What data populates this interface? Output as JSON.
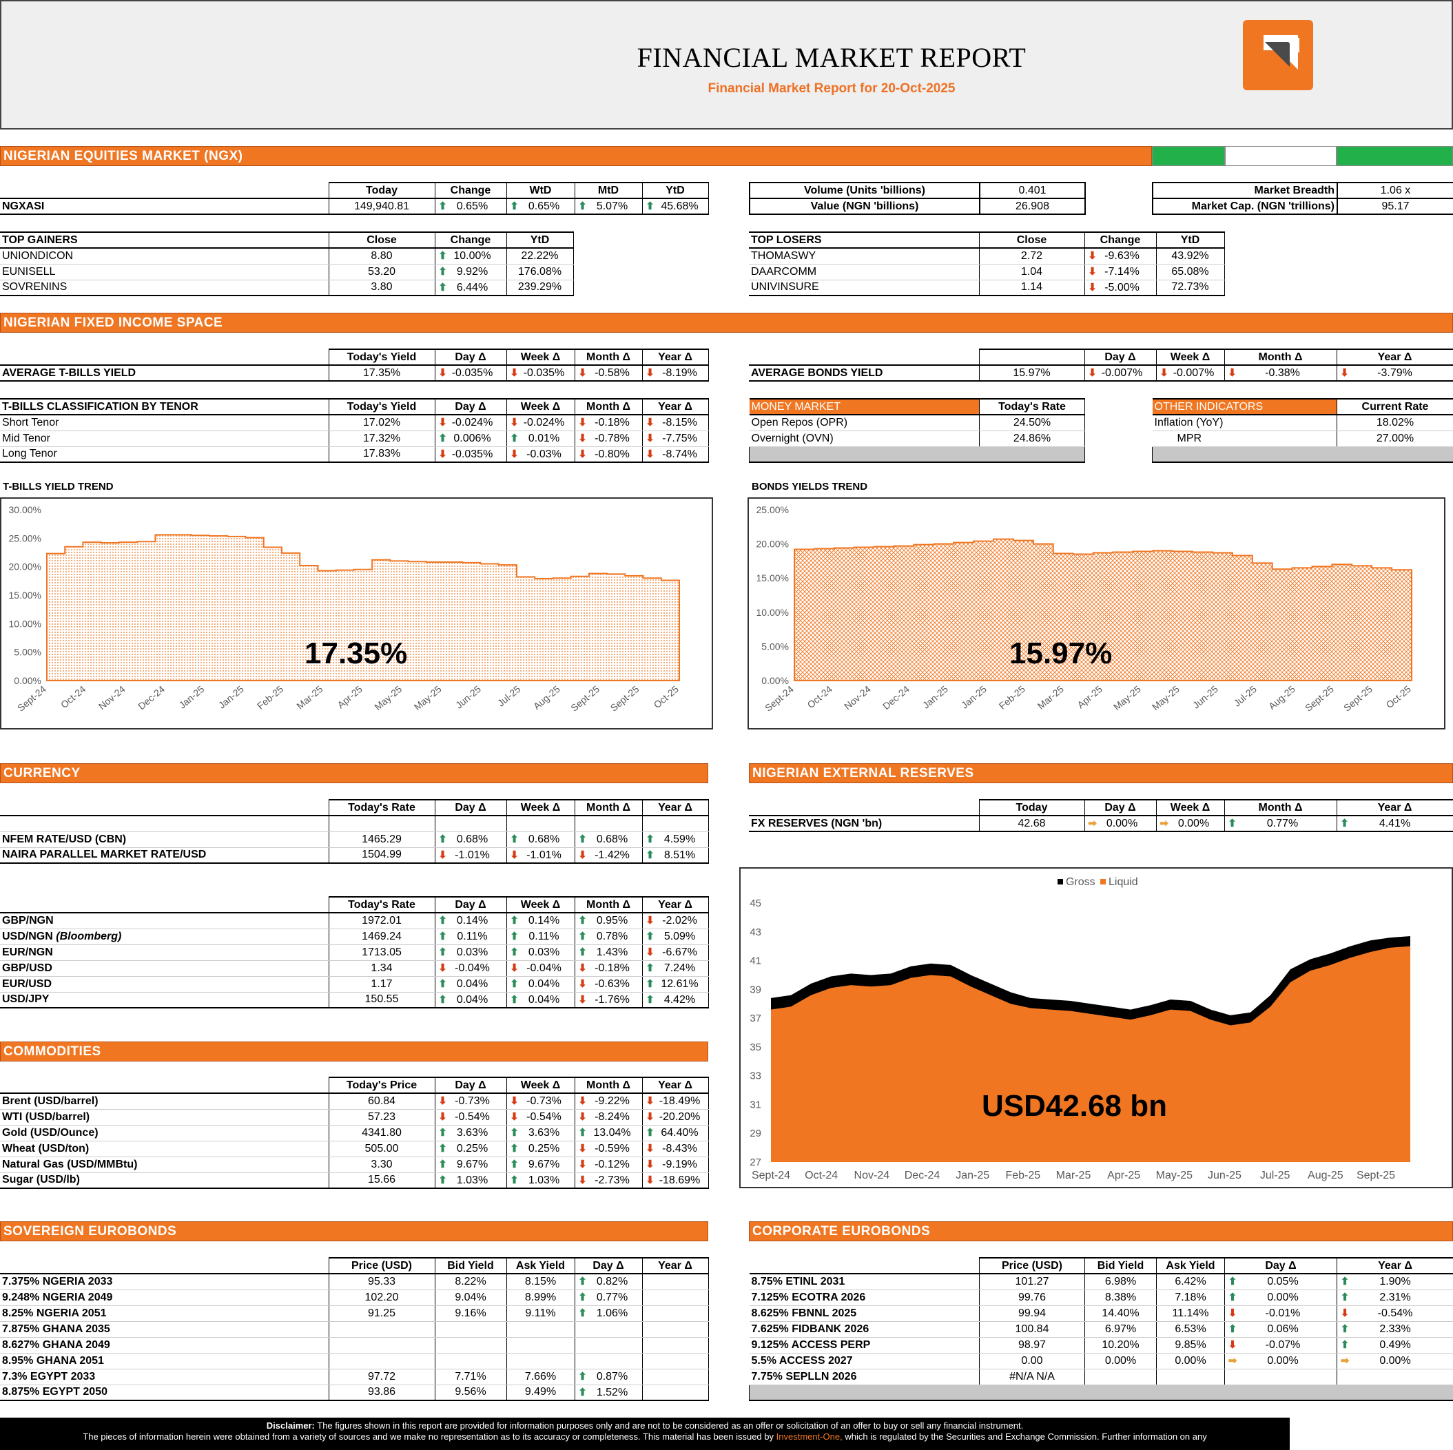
{
  "header": {
    "title": "FINANCIAL MARKET REPORT",
    "subtitle": "Financial Market Report for 20-Oct-2025"
  },
  "equities": {
    "band": "NIGERIAN EQUITIES MARKET (NGX)",
    "ngx": {
      "cols": [
        "Today",
        "Change",
        "WtD",
        "MtD",
        "YtD"
      ],
      "label": "NGXASI",
      "today": "149,940.81",
      "change": "0.65%",
      "wtd": "0.65%",
      "mtd": "5.07%",
      "ytd": "45.68%"
    },
    "volume": {
      "label": "Volume (Units 'billions)",
      "value": "0.401"
    },
    "value": {
      "label": "Value (NGN 'billions)",
      "value": "26.908"
    },
    "breadth": {
      "label": "Market Breadth",
      "value": "1.06 x"
    },
    "mcap": {
      "label": "Market Cap. (NGN 'trillions)",
      "value": "95.17"
    },
    "gainers": {
      "title": "TOP GAINERS",
      "cols": [
        "Close",
        "Change",
        "YtD"
      ],
      "rows": [
        {
          "name": "UNIONDICON",
          "close": "8.80",
          "change": "10.00%",
          "ytd": "22.22%"
        },
        {
          "name": "EUNISELL",
          "close": "53.20",
          "change": "9.92%",
          "ytd": "176.08%"
        },
        {
          "name": "SOVRENINS",
          "close": "3.80",
          "change": "6.44%",
          "ytd": "239.29%"
        }
      ]
    },
    "losers": {
      "title": "TOP LOSERS",
      "cols": [
        "Close",
        "Change",
        "YtD"
      ],
      "rows": [
        {
          "name": "THOMASWY",
          "close": "2.72",
          "change": "-9.63%",
          "ytd": "43.92%"
        },
        {
          "name": "DAARCOMM",
          "close": "1.04",
          "change": "-7.14%",
          "ytd": "65.08%"
        },
        {
          "name": "UNIVINSURE",
          "close": "1.14",
          "change": "-5.00%",
          "ytd": "72.73%"
        }
      ]
    }
  },
  "fixed": {
    "band": "NIGERIAN FIXED INCOME SPACE",
    "tbills": {
      "cols": [
        "Today's Yield",
        "Day Δ",
        "Week Δ",
        "Month Δ",
        "Year Δ"
      ],
      "label": "AVERAGE T-BILLS YIELD",
      "today": "17.35%",
      "day": "-0.035%",
      "week": "-0.035%",
      "month": "-0.58%",
      "year": "-8.19%"
    },
    "bonds": {
      "cols": [
        "",
        "Day Δ",
        "Week Δ",
        "Month Δ",
        "Year Δ"
      ],
      "label": "AVERAGE BONDS YIELD",
      "today": "15.97%",
      "day": "-0.007%",
      "week": "-0.007%",
      "month": "-0.38%",
      "year": "-3.79%"
    },
    "tenor": {
      "title": "T-BILLS CLASSIFICATION BY TENOR",
      "cols": [
        "Today's Yield",
        "Day Δ",
        "Week Δ",
        "Month Δ",
        "Year Δ"
      ],
      "rows": [
        {
          "name": "Short Tenor",
          "today": "17.02%",
          "day": "-0.024%",
          "dd": "dn",
          "week": "-0.024%",
          "wd": "dn",
          "month": "-0.18%",
          "md": "dn",
          "year": "-8.15%",
          "yd": "dn"
        },
        {
          "name": "Mid Tenor",
          "today": "17.32%",
          "day": "0.006%",
          "dd": "up",
          "week": "0.01%",
          "wd": "up",
          "month": "-0.78%",
          "md": "dn",
          "year": "-7.75%",
          "yd": "dn"
        },
        {
          "name": "Long Tenor",
          "today": "17.83%",
          "day": "-0.035%",
          "dd": "dn",
          "week": "-0.03%",
          "wd": "dn",
          "month": "-0.80%",
          "md": "dn",
          "year": "-8.74%",
          "yd": "dn"
        }
      ]
    },
    "money": {
      "title": "MONEY MARKET",
      "col": "Today's Rate",
      "rows": [
        {
          "name": "Open Repos (OPR)",
          "value": "24.50%"
        },
        {
          "name": "Overnight (OVN)",
          "value": "24.86%"
        }
      ]
    },
    "other": {
      "title": "OTHER INDICATORS",
      "col": "Current Rate",
      "rows": [
        {
          "name": "Inflation (YoY)",
          "value": "18.02%"
        },
        {
          "name": "MPR",
          "value": "27.00%"
        }
      ]
    }
  },
  "tbills_chart": {
    "title": "T-BILLS YIELD TREND",
    "big": "17.35%",
    "chart_data": {
      "type": "area",
      "title": "T-BILLS YIELD TREND",
      "ylim": [
        0,
        30
      ],
      "yticks": [
        "0.00%",
        "5.00%",
        "10.00%",
        "15.00%",
        "20.00%",
        "25.00%",
        "30.00%"
      ],
      "xticks": [
        "Sept-24",
        "Oct-24",
        "Nov-24",
        "Dec-24",
        "Jan-25",
        "Jan-25",
        "Feb-25",
        "Mar-25",
        "Apr-25",
        "May-25",
        "May-25",
        "Jun-25",
        "Jul-25",
        "Aug-25",
        "Sept-25",
        "Sept-25",
        "Oct-25"
      ],
      "values": [
        22.3,
        23.5,
        24.3,
        24.2,
        24.3,
        24.4,
        25.6,
        25.6,
        25.5,
        25.4,
        25.3,
        25.1,
        23.4,
        22.4,
        20.2,
        19.3,
        19.4,
        19.5,
        21.2,
        21.0,
        20.9,
        20.8,
        20.8,
        20.7,
        20.5,
        20.3,
        18.2,
        17.9,
        18.0,
        18.3,
        18.8,
        18.7,
        18.4,
        18.0,
        17.6,
        17.35
      ]
    }
  },
  "bonds_chart": {
    "title": "BONDS YIELDS TREND",
    "big": "15.97%",
    "chart_data": {
      "type": "area",
      "title": "BONDS YIELDS TREND",
      "ylim": [
        0,
        25
      ],
      "yticks": [
        "0.00%",
        "5.00%",
        "10.00%",
        "15.00%",
        "20.00%",
        "25.00%"
      ],
      "xticks": [
        "Sept-24",
        "Oct-24",
        "Nov-24",
        "Dec-24",
        "Jan-25",
        "Jan-25",
        "Feb-25",
        "Mar-25",
        "Apr-25",
        "May-25",
        "May-25",
        "Jun-25",
        "Jul-25",
        "Aug-25",
        "Sept-25",
        "Sept-25",
        "Oct-25"
      ],
      "values": [
        19.2,
        19.3,
        19.4,
        19.5,
        19.6,
        19.7,
        19.9,
        20.0,
        20.2,
        20.4,
        20.7,
        20.5,
        20.0,
        18.6,
        18.5,
        18.7,
        18.8,
        18.9,
        19.0,
        18.9,
        18.8,
        18.7,
        18.3,
        17.2,
        16.3,
        16.5,
        16.7,
        17.0,
        16.8,
        16.5,
        16.2,
        15.97
      ]
    }
  },
  "currency": {
    "band": "CURRENCY",
    "cols": [
      "Today's Rate",
      "Day Δ",
      "Week Δ",
      "Month Δ",
      "Year Δ"
    ],
    "rows": [
      {
        "name": "NFEM RATE/USD (CBN)",
        "today": "1465.29",
        "day": "0.68%",
        "dd": "up",
        "week": "0.68%",
        "wd": "up",
        "month": "0.68%",
        "md": "up",
        "year": "4.59%",
        "yd": "up"
      },
      {
        "name": "NAIRA PARALLEL MARKET RATE/USD",
        "today": "1504.99",
        "day": "-1.01%",
        "dd": "dn",
        "week": "-1.01%",
        "wd": "dn",
        "month": "-1.42%",
        "md": "dn",
        "year": "8.51%",
        "yd": "up"
      }
    ],
    "fx": {
      "cols": [
        "Today's Rate",
        "Day Δ",
        "Week Δ",
        "Month Δ",
        "Year Δ"
      ],
      "rows": [
        {
          "name": "GBP/NGN",
          "note": "",
          "today": "1972.01",
          "day": "0.14%",
          "dd": "up",
          "week": "0.14%",
          "wd": "up",
          "month": "0.95%",
          "md": "up",
          "year": "-2.02%",
          "yd": "dn"
        },
        {
          "name": "USD/NGN",
          "note": "(Bloomberg)",
          "today": "1469.24",
          "day": "0.11%",
          "dd": "up",
          "week": "0.11%",
          "wd": "up",
          "month": "0.78%",
          "md": "up",
          "year": "5.09%",
          "yd": "up"
        },
        {
          "name": "EUR/NGN",
          "note": "",
          "today": "1713.05",
          "day": "0.03%",
          "dd": "up",
          "week": "0.03%",
          "wd": "up",
          "month": "1.43%",
          "md": "up",
          "year": "-6.67%",
          "yd": "dn"
        },
        {
          "name": "GBP/USD",
          "note": "",
          "today": "1.34",
          "day": "-0.04%",
          "dd": "dn",
          "week": "-0.04%",
          "wd": "dn",
          "month": "-0.18%",
          "md": "dn",
          "year": "7.24%",
          "yd": "up"
        },
        {
          "name": "EUR/USD",
          "note": "",
          "today": "1.17",
          "day": "0.04%",
          "dd": "up",
          "week": "0.04%",
          "wd": "up",
          "month": "-0.63%",
          "md": "dn",
          "year": "12.61%",
          "yd": "up"
        },
        {
          "name": "USD/JPY",
          "note": "",
          "today": "150.55",
          "day": "0.04%",
          "dd": "up",
          "week": "0.04%",
          "wd": "up",
          "month": "-1.76%",
          "md": "dn",
          "year": "4.42%",
          "yd": "up"
        }
      ]
    }
  },
  "reserves": {
    "band": "NIGERIAN EXTERNAL RESERVES",
    "cols": [
      "Today",
      "Day Δ",
      "Week Δ",
      "Month Δ",
      "Year Δ"
    ],
    "label": "FX RESERVES (NGN 'bn)",
    "today": "42.68",
    "day": "0.00%",
    "week": "0.00%",
    "month": "0.77%",
    "year": "4.41%",
    "big": "USD42.68 bn",
    "chart_data": {
      "type": "area",
      "legend": [
        "Gross",
        "Liquid"
      ],
      "ylim": [
        27,
        45
      ],
      "yticks": [
        "27",
        "29",
        "31",
        "33",
        "35",
        "37",
        "39",
        "41",
        "43",
        "45"
      ],
      "xticks": [
        "Sept-24",
        "Oct-24",
        "Nov-24",
        "Dec-24",
        "Jan-25",
        "Feb-25",
        "Mar-25",
        "Apr-25",
        "May-25",
        "Jun-25",
        "Jul-25",
        "Aug-25",
        "Sept-25"
      ],
      "gross": [
        38.4,
        38.6,
        39.4,
        39.9,
        40.1,
        40.0,
        40.1,
        40.6,
        40.8,
        40.7,
        40.0,
        39.4,
        38.8,
        38.4,
        38.3,
        38.2,
        38.0,
        37.8,
        37.6,
        37.9,
        38.3,
        38.2,
        37.6,
        37.2,
        37.4,
        38.6,
        40.4,
        41.1,
        41.5,
        42.0,
        42.4,
        42.6,
        42.7
      ],
      "liquid": [
        37.6,
        37.8,
        38.6,
        39.1,
        39.3,
        39.2,
        39.3,
        39.8,
        40.0,
        39.9,
        39.2,
        38.6,
        38.0,
        37.7,
        37.6,
        37.5,
        37.3,
        37.1,
        36.9,
        37.2,
        37.6,
        37.5,
        36.9,
        36.5,
        36.7,
        37.8,
        39.5,
        40.3,
        40.7,
        41.2,
        41.6,
        41.9,
        42.0
      ]
    }
  },
  "commodities": {
    "band": "COMMODITIES",
    "cols": [
      "Today's Price",
      "Day Δ",
      "Week Δ",
      "Month Δ",
      "Year Δ"
    ],
    "rows": [
      {
        "name": "Brent (USD/barrel)",
        "today": "60.84",
        "day": "-0.73%",
        "dd": "dn",
        "week": "-0.73%",
        "wd": "dn",
        "month": "-9.22%",
        "md": "dn",
        "year": "-18.49%",
        "yd": "dn"
      },
      {
        "name": "WTI (USD/barrel)",
        "today": "57.23",
        "day": "-0.54%",
        "dd": "dn",
        "week": "-0.54%",
        "wd": "dn",
        "month": "-8.24%",
        "md": "dn",
        "year": "-20.20%",
        "yd": "dn"
      },
      {
        "name": "Gold (USD/Ounce)",
        "today": "4341.80",
        "day": "3.63%",
        "dd": "up",
        "week": "3.63%",
        "wd": "up",
        "month": "13.04%",
        "md": "up",
        "year": "64.40%",
        "yd": "up"
      },
      {
        "name": "Wheat (USD/ton)",
        "today": "505.00",
        "day": "0.25%",
        "dd": "up",
        "week": "0.25%",
        "wd": "up",
        "month": "-0.59%",
        "md": "dn",
        "year": "-8.43%",
        "yd": "dn"
      },
      {
        "name": "Natural Gas (USD/MMBtu)",
        "today": "3.30",
        "day": "9.67%",
        "dd": "up",
        "week": "9.67%",
        "wd": "up",
        "month": "-0.12%",
        "md": "dn",
        "year": "-9.19%",
        "yd": "dn"
      },
      {
        "name": "Sugar (USD/lb)",
        "today": "15.66",
        "day": "1.03%",
        "dd": "up",
        "week": "1.03%",
        "wd": "up",
        "month": "-2.73%",
        "md": "dn",
        "year": "-18.69%",
        "yd": "dn"
      }
    ]
  },
  "sovereign": {
    "band": "SOVEREIGN EUROBONDS",
    "cols": [
      "Price (USD)",
      "Bid Yield",
      "Ask Yield",
      "Day Δ",
      "Year Δ"
    ],
    "rows": [
      {
        "name": "7.375% NGERIA 2033",
        "price": "95.33",
        "bid": "8.22%",
        "ask": "8.15%",
        "day": "0.82%",
        "dd": "up"
      },
      {
        "name": "9.248% NGERIA 2049",
        "price": "102.20",
        "bid": "9.04%",
        "ask": "8.99%",
        "day": "0.77%",
        "dd": "up"
      },
      {
        "name": "8.25% NGERIA 2051",
        "price": "91.25",
        "bid": "9.16%",
        "ask": "9.11%",
        "day": "1.06%",
        "dd": "up"
      },
      {
        "name": "7.875% GHANA 2035",
        "price": "",
        "bid": "",
        "ask": "",
        "day": "",
        "dd": ""
      },
      {
        "name": "8.627% GHANA 2049",
        "price": "",
        "bid": "",
        "ask": "",
        "day": "",
        "dd": ""
      },
      {
        "name": "8.95% GHANA 2051",
        "price": "",
        "bid": "",
        "ask": "",
        "day": "",
        "dd": ""
      },
      {
        "name": "7.3% EGYPT 2033",
        "price": "97.72",
        "bid": "7.71%",
        "ask": "7.66%",
        "day": "0.87%",
        "dd": "up"
      },
      {
        "name": "8.875% EGYPT 2050",
        "price": "93.86",
        "bid": "9.56%",
        "ask": "9.49%",
        "day": "1.52%",
        "dd": "up"
      }
    ]
  },
  "corporate": {
    "band": "CORPORATE EUROBONDS",
    "cols": [
      "Price (USD)",
      "Bid Yield",
      "Ask Yield",
      "Day Δ",
      "Year Δ"
    ],
    "rows": [
      {
        "name": "8.75% ETINL 2031",
        "price": "101.27",
        "bid": "6.98%",
        "ask": "6.42%",
        "day": "0.05%",
        "dd": "up",
        "year": "1.90%",
        "yd": "up"
      },
      {
        "name": "7.125% ECOTRA 2026",
        "price": "99.76",
        "bid": "8.38%",
        "ask": "7.18%",
        "day": "0.00%",
        "dd": "up",
        "year": "2.31%",
        "yd": "up"
      },
      {
        "name": "8.625% FBNNL 2025",
        "price": "99.94",
        "bid": "14.40%",
        "ask": "11.14%",
        "day": "-0.01%",
        "dd": "dn",
        "year": "-0.54%",
        "yd": "dn"
      },
      {
        "name": "7.625% FIDBANK 2026",
        "price": "100.84",
        "bid": "6.97%",
        "ask": "6.53%",
        "day": "0.06%",
        "dd": "up",
        "year": "2.33%",
        "yd": "up"
      },
      {
        "name": "9.125% ACCESS PERP",
        "price": "98.97",
        "bid": "10.20%",
        "ask": "9.85%",
        "day": "-0.07%",
        "dd": "dn",
        "year": "0.49%",
        "yd": "up"
      },
      {
        "name": "5.5% ACCESS 2027",
        "price": "0.00",
        "bid": "0.00%",
        "ask": "0.00%",
        "day": "0.00%",
        "dd": "fl",
        "year": "0.00%",
        "yd": "fl"
      },
      {
        "name": "7.75% SEPLLN 2026",
        "price": "#N/A N/A",
        "bid": "",
        "ask": "",
        "day": "",
        "dd": "",
        "year": "",
        "yd": ""
      }
    ]
  },
  "disclaimer": {
    "label": "Disclaimer:",
    "line1": "The figures shown in this report are provided for information purposes only and are not to be considered as an offer or solicitation of an offer to buy or sell any financial instrument.",
    "line2a": "The pieces of information herein were obtained from a variety of sources and we make no representation as to its accuracy or completeness. This material has been issued by",
    "link": "Investment-One,",
    "line2b": "which is regulated by the Securities and Exchange Commission. Further information on any"
  },
  "colors": {
    "accent": "#f07622",
    "up": "#2a8c5a",
    "down": "#d63b12",
    "flat": "#e8a23a"
  },
  "icons": {
    "up": "up-arrow-icon",
    "down": "down-arrow-icon",
    "flat": "right-arrow-icon"
  }
}
